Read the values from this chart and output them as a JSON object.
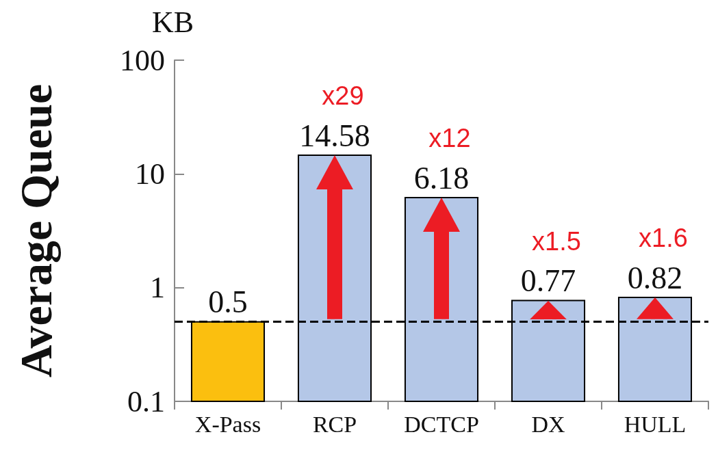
{
  "chart_data": {
    "type": "bar",
    "categories": [
      "X-Pass",
      "RCP",
      "DCTCP",
      "DX",
      "HULL"
    ],
    "values": [
      0.5,
      14.58,
      6.18,
      0.77,
      0.82
    ],
    "colors": [
      "#fbbf0f",
      "#b4c7e7",
      "#b4c7e7",
      "#b4c7e7",
      "#b4c7e7"
    ],
    "ylabel": "Average Queue",
    "log": true,
    "ylim": [
      0.1,
      100
    ],
    "yticks": [
      0.1,
      1,
      10,
      100
    ],
    "grid": false,
    "data_labels": true,
    "ref_lines": [
      {
        "axis": "y",
        "value": 0.5,
        "color": "#000000",
        "line_style": "dashed"
      }
    ],
    "annotations": [
      "KB",
      {
        "text": "x29",
        "x": "RCP",
        "y": 14.58
      },
      {
        "text": "x12",
        "x": "DCTCP",
        "y": 6.18
      },
      {
        "text": "x1.5",
        "x": "DX",
        "y": 0.77
      },
      {
        "text": "x1.6",
        "x": "HULL",
        "y": 0.82
      }
    ]
  }
}
